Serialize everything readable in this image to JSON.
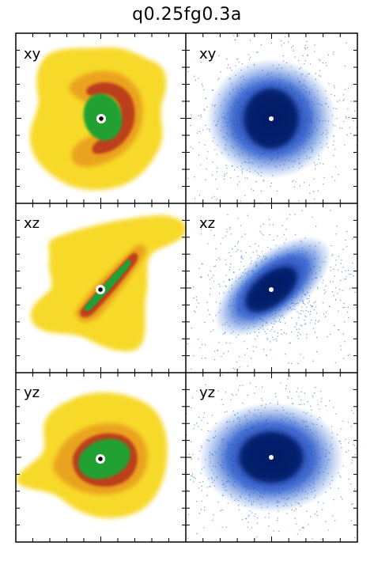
{
  "figure": {
    "title": "q0.25fg0.3a",
    "colors": {
      "gas_outer": "#f7d92a",
      "gas_mid": "#e89a1a",
      "gas_dense": "#b8341a",
      "gas_core": "#22a033",
      "stars_sparse": "#3a78d8",
      "stars_dense": "#0a2a9a",
      "stars_core": "#061a66",
      "frame": "#000000"
    },
    "rows": [
      {
        "projection": "xy",
        "gas_label": "xy",
        "stars_label": "xy"
      },
      {
        "projection": "xz",
        "gas_label": "xz",
        "stars_label": "xz"
      },
      {
        "projection": "yz",
        "gas_label": "yz",
        "stars_label": "yz"
      }
    ]
  }
}
